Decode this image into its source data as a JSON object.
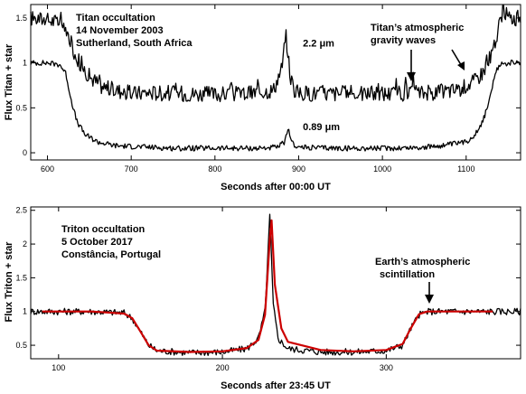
{
  "chart_data": [
    {
      "type": "line",
      "panel": "top",
      "ylabel": "Flux Titan + star",
      "xlabel": "Seconds after 00:00 UT",
      "xlim": [
        580,
        1165
      ],
      "ylim": [
        -0.08,
        1.65
      ],
      "xticks": [
        600,
        700,
        800,
        900,
        1000,
        1100
      ],
      "yticks": [
        0,
        0.5,
        1,
        1.5
      ],
      "ytick_labels": [
        "0",
        "0.5",
        "1",
        "1.5"
      ],
      "info_lines": [
        "Titan occultation",
        "14 November 2003",
        "Sutherland, South Africa"
      ],
      "arrow_label_lines": [
        "Titan’s atmospheric",
        "gravity waves"
      ],
      "series": [
        {
          "name": "2.2 μm",
          "color": "#000000",
          "x": [
            580,
            600,
            615,
            625,
            635,
            650,
            665,
            680,
            700,
            720,
            760,
            800,
            840,
            870,
            880,
            885,
            890,
            895,
            900,
            940,
            980,
            1020,
            1060,
            1090,
            1100,
            1110,
            1120,
            1125,
            1130,
            1135,
            1140,
            1145,
            1150,
            1165
          ],
          "y": [
            1.5,
            1.48,
            1.45,
            1.3,
            1.05,
            0.85,
            0.74,
            0.7,
            0.66,
            0.67,
            0.66,
            0.65,
            0.66,
            0.7,
            0.95,
            1.3,
            0.85,
            0.7,
            0.66,
            0.66,
            0.66,
            0.66,
            0.67,
            0.7,
            0.75,
            0.8,
            0.9,
            1.0,
            1.1,
            1.2,
            1.45,
            1.6,
            1.5,
            1.5
          ]
        },
        {
          "name": "0.89 μm",
          "color": "#000000",
          "x": [
            580,
            600,
            615,
            622,
            628,
            635,
            645,
            660,
            680,
            700,
            750,
            800,
            850,
            875,
            883,
            888,
            893,
            900,
            950,
            1000,
            1050,
            1080,
            1100,
            1110,
            1120,
            1128,
            1135,
            1140,
            1150,
            1165
          ],
          "y": [
            1.0,
            1.0,
            0.98,
            0.88,
            0.6,
            0.35,
            0.2,
            0.12,
            0.08,
            0.07,
            0.05,
            0.05,
            0.05,
            0.06,
            0.12,
            0.25,
            0.1,
            0.06,
            0.05,
            0.05,
            0.06,
            0.09,
            0.12,
            0.2,
            0.35,
            0.6,
            0.88,
            0.98,
            1.0,
            1.0
          ]
        }
      ],
      "annotations": [
        {
          "text": "2.2 μm",
          "x": 905,
          "y": 1.18
        },
        {
          "text": "0.89 μm",
          "x": 905,
          "y": 0.25
        }
      ]
    },
    {
      "type": "line",
      "panel": "bottom",
      "ylabel": "Flux Triton + star",
      "xlabel": "Seconds after 23:45 UT",
      "xlim": [
        83,
        382
      ],
      "ylim": [
        0.3,
        2.55
      ],
      "xticks": [
        100,
        200,
        300
      ],
      "yticks": [
        0.5,
        1,
        1.5,
        2,
        2.5
      ],
      "ytick_labels": [
        "0.5",
        "1",
        "1.5",
        "2",
        "2.5"
      ],
      "info_lines": [
        "Triton occultation",
        "5 October 2017",
        "Constância, Portugal"
      ],
      "arrow_label_lines": [
        "Earth’s atmospheric",
        "scintillation"
      ],
      "series": [
        {
          "name": "",
          "color": "#000000",
          "x": [
            83,
            100,
            120,
            140,
            145,
            150,
            155,
            160,
            180,
            200,
            215,
            222,
            226,
            229,
            231,
            234,
            240,
            260,
            280,
            300,
            310,
            315,
            320,
            325,
            340,
            360,
            382
          ],
          "y": [
            1.0,
            1.0,
            1.0,
            0.98,
            0.9,
            0.7,
            0.5,
            0.42,
            0.39,
            0.4,
            0.45,
            0.6,
            1.0,
            2.45,
            1.1,
            0.6,
            0.45,
            0.4,
            0.4,
            0.42,
            0.5,
            0.75,
            0.95,
            1.0,
            1.0,
            1.0,
            1.0
          ]
        },
        {
          "name": "",
          "color": "#cc0000",
          "x": [
            90,
            100,
            120,
            140,
            145,
            150,
            155,
            160,
            180,
            200,
            215,
            222,
            226,
            229,
            230,
            232,
            236,
            240,
            260,
            280,
            300,
            310,
            315,
            320,
            325,
            340,
            360,
            365
          ],
          "y": [
            1.0,
            1.0,
            1.0,
            0.97,
            0.9,
            0.7,
            0.5,
            0.42,
            0.4,
            0.41,
            0.46,
            0.58,
            0.95,
            2.1,
            2.35,
            1.4,
            0.75,
            0.55,
            0.43,
            0.41,
            0.43,
            0.52,
            0.75,
            0.96,
            1.0,
            1.0,
            1.0,
            1.0
          ]
        }
      ]
    }
  ]
}
